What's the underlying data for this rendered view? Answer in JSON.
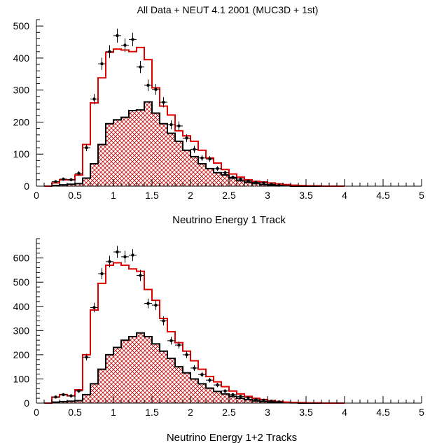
{
  "chart_data": [
    {
      "type": "histogram",
      "title": "All Data + NEUT 4.1 2001 (MUC3D + 1st)",
      "xlabel": "Neutrino Energy 1 Track",
      "ylabel": "",
      "xlim": [
        0,
        5
      ],
      "ylim": [
        0,
        520
      ],
      "xticks": [
        "0",
        "0.5",
        "1",
        "1.5",
        "2",
        "2.5",
        "3",
        "3.5",
        "4",
        "4.5",
        "5"
      ],
      "yticks": [
        "0",
        "100",
        "200",
        "300",
        "400",
        "500"
      ],
      "bin_edges": [
        0.1,
        0.2,
        0.3,
        0.4,
        0.5,
        0.6,
        0.7,
        0.8,
        0.9,
        1.0,
        1.1,
        1.2,
        1.3,
        1.4,
        1.5,
        1.6,
        1.7,
        1.8,
        1.9,
        2.0,
        2.1,
        2.2,
        2.3,
        2.4,
        2.5,
        2.6,
        2.7,
        2.8,
        2.9,
        3.0,
        3.1,
        3.2,
        3.3,
        3.4,
        3.5,
        3.6,
        3.7,
        3.8,
        3.9,
        4.0
      ],
      "series": [
        {
          "style": "red-outline",
          "color": "#e00000",
          "values": [
            0,
            10,
            20,
            20,
            35,
            130,
            260,
            338,
            418,
            428,
            425,
            420,
            433,
            395,
            307,
            250,
            222,
            173,
            157,
            140,
            112,
            88,
            72,
            52,
            38,
            28,
            20,
            15,
            13,
            10,
            7,
            5,
            3,
            2,
            1,
            1,
            0,
            0,
            0
          ]
        },
        {
          "style": "black-outline-hatched",
          "color": "#000000",
          "fill": "#cc0000",
          "values": [
            0,
            2,
            4,
            6,
            8,
            25,
            70,
            130,
            195,
            207,
            215,
            236,
            238,
            263,
            228,
            195,
            165,
            140,
            112,
            92,
            70,
            55,
            42,
            35,
            25,
            17,
            12,
            8,
            5,
            3,
            2,
            1,
            0,
            0,
            0,
            0,
            0,
            0,
            0
          ]
        },
        {
          "style": "points",
          "color": "#000000",
          "points": [
            [
              0.25,
              14,
              4
            ],
            [
              0.35,
              22,
              5
            ],
            [
              0.45,
              20,
              5
            ],
            [
              0.55,
              40,
              7
            ],
            [
              0.65,
              120,
              11
            ],
            [
              0.75,
              272,
              16
            ],
            [
              0.85,
              382,
              19
            ],
            [
              0.95,
              420,
              20
            ],
            [
              1.05,
              470,
              22
            ],
            [
              1.15,
              440,
              21
            ],
            [
              1.25,
              458,
              21
            ],
            [
              1.35,
              372,
              19
            ],
            [
              1.45,
              315,
              18
            ],
            [
              1.55,
              302,
              17
            ],
            [
              1.65,
              262,
              16
            ],
            [
              1.75,
              192,
              14
            ],
            [
              1.85,
              188,
              14
            ],
            [
              1.95,
              150,
              12
            ],
            [
              2.05,
              115,
              11
            ],
            [
              2.15,
              88,
              9
            ],
            [
              2.25,
              85,
              9
            ],
            [
              2.35,
              55,
              7
            ],
            [
              2.45,
              42,
              6
            ],
            [
              2.55,
              28,
              5
            ],
            [
              2.65,
              22,
              5
            ],
            [
              2.75,
              16,
              4
            ],
            [
              2.85,
              12,
              3
            ],
            [
              2.95,
              10,
              3
            ],
            [
              3.05,
              6,
              2
            ],
            [
              3.15,
              3,
              2
            ]
          ]
        }
      ]
    },
    {
      "type": "histogram",
      "title": "",
      "xlabel": "Neutrino Energy 1+2 Tracks",
      "ylabel": "",
      "xlim": [
        0,
        5
      ],
      "ylim": [
        0,
        680
      ],
      "xticks": [
        "0",
        "0.5",
        "1",
        "1.5",
        "2",
        "2.5",
        "3",
        "3.5",
        "4",
        "4.5",
        "5"
      ],
      "yticks": [
        "0",
        "100",
        "200",
        "300",
        "400",
        "500",
        "600"
      ],
      "bin_edges": [
        0.1,
        0.2,
        0.3,
        0.4,
        0.5,
        0.6,
        0.7,
        0.8,
        0.9,
        1.0,
        1.1,
        1.2,
        1.3,
        1.4,
        1.5,
        1.6,
        1.7,
        1.8,
        1.9,
        2.0,
        2.1,
        2.2,
        2.3,
        2.4,
        2.5,
        2.6,
        2.7,
        2.8,
        2.9,
        3.0,
        3.1,
        3.2,
        3.3,
        3.4,
        3.5,
        3.6,
        3.7,
        3.8,
        3.9,
        4.0
      ],
      "series": [
        {
          "style": "red-outline",
          "color": "#e00000",
          "values": [
            0,
            25,
            35,
            30,
            55,
            200,
            385,
            495,
            570,
            580,
            570,
            555,
            545,
            470,
            425,
            350,
            295,
            250,
            215,
            175,
            140,
            110,
            88,
            68,
            50,
            38,
            28,
            20,
            15,
            10,
            7,
            4,
            3,
            2,
            1,
            1,
            0,
            0,
            0
          ]
        },
        {
          "style": "black-outline-hatched",
          "color": "#000000",
          "fill": "#cc0000",
          "values": [
            0,
            4,
            6,
            8,
            10,
            35,
            80,
            140,
            200,
            230,
            260,
            275,
            290,
            275,
            245,
            215,
            185,
            150,
            125,
            100,
            80,
            62,
            48,
            38,
            28,
            20,
            14,
            9,
            6,
            4,
            3,
            2,
            1,
            0,
            0,
            0,
            0,
            0,
            0
          ]
        },
        {
          "style": "points",
          "color": "#000000",
          "points": [
            [
              0.25,
              25,
              5
            ],
            [
              0.35,
              35,
              6
            ],
            [
              0.45,
              30,
              6
            ],
            [
              0.55,
              50,
              7
            ],
            [
              0.65,
              190,
              14
            ],
            [
              0.75,
              395,
              20
            ],
            [
              0.85,
              535,
              23
            ],
            [
              0.95,
              585,
              24
            ],
            [
              1.05,
              625,
              25
            ],
            [
              1.15,
              605,
              25
            ],
            [
              1.25,
              612,
              25
            ],
            [
              1.35,
              528,
              23
            ],
            [
              1.45,
              412,
              20
            ],
            [
              1.55,
              405,
              20
            ],
            [
              1.65,
              340,
              18
            ],
            [
              1.75,
              258,
              16
            ],
            [
              1.85,
              240,
              15
            ],
            [
              1.95,
              200,
              14
            ],
            [
              2.05,
              145,
              12
            ],
            [
              2.15,
              118,
              11
            ],
            [
              2.25,
              95,
              10
            ],
            [
              2.35,
              75,
              9
            ],
            [
              2.45,
              50,
              7
            ],
            [
              2.55,
              35,
              6
            ],
            [
              2.65,
              28,
              5
            ],
            [
              2.75,
              22,
              5
            ],
            [
              2.85,
              15,
              4
            ],
            [
              2.95,
              12,
              3
            ],
            [
              3.05,
              8,
              3
            ],
            [
              3.15,
              5,
              2
            ]
          ]
        }
      ]
    }
  ]
}
